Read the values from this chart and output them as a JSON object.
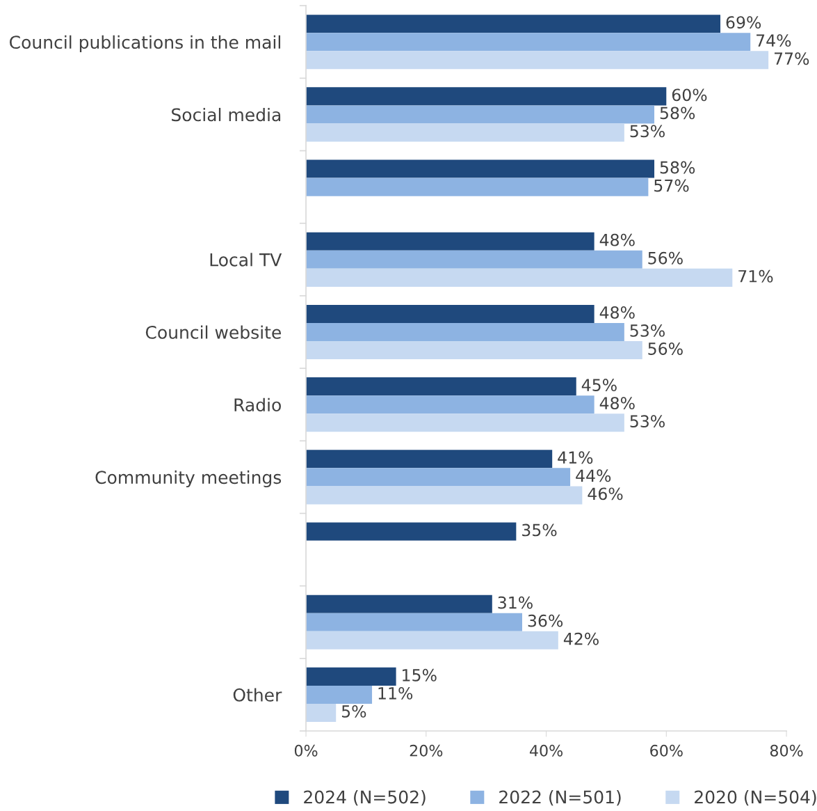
{
  "chart_data": {
    "type": "bar",
    "orientation": "horizontal",
    "categories": [
      "Council publications in the mail",
      "Social media",
      null,
      "Local TV",
      "Council website",
      "Radio",
      "Community meetings",
      null,
      null,
      "Other"
    ],
    "series": [
      {
        "name": "2024 (N=502)",
        "color": "#1f497d",
        "values": [
          69,
          60,
          58,
          48,
          48,
          45,
          41,
          35,
          31,
          15
        ]
      },
      {
        "name": "2022 (N=501)",
        "color": "#8db3e2",
        "values": [
          74,
          58,
          57,
          56,
          53,
          48,
          44,
          null,
          36,
          11
        ]
      },
      {
        "name": "2020 (N=504)",
        "color": "#c6d9f1",
        "values": [
          77,
          53,
          null,
          71,
          56,
          53,
          46,
          null,
          42,
          5
        ]
      }
    ],
    "xlim": [
      0,
      80
    ],
    "xticks": [
      {
        "value": 0,
        "label": "0%"
      },
      {
        "value": 20,
        "label": "20%"
      },
      {
        "value": 40,
        "label": "40%"
      },
      {
        "value": 60,
        "label": "60%"
      },
      {
        "value": 80,
        "label": "80%"
      }
    ],
    "value_labels": [
      [
        "69%",
        "60%",
        "58%",
        "48%",
        "48%",
        "45%",
        "41%",
        "35%",
        "31%",
        "15%"
      ],
      [
        "74%",
        "58%",
        "57%",
        "56%",
        "53%",
        "48%",
        "44%",
        null,
        "36%",
        "11%"
      ],
      [
        "77%",
        "53%",
        null,
        "71%",
        "56%",
        "53%",
        "46%",
        null,
        "42%",
        "5%"
      ]
    ],
    "grid": false,
    "legend": "bottom"
  }
}
